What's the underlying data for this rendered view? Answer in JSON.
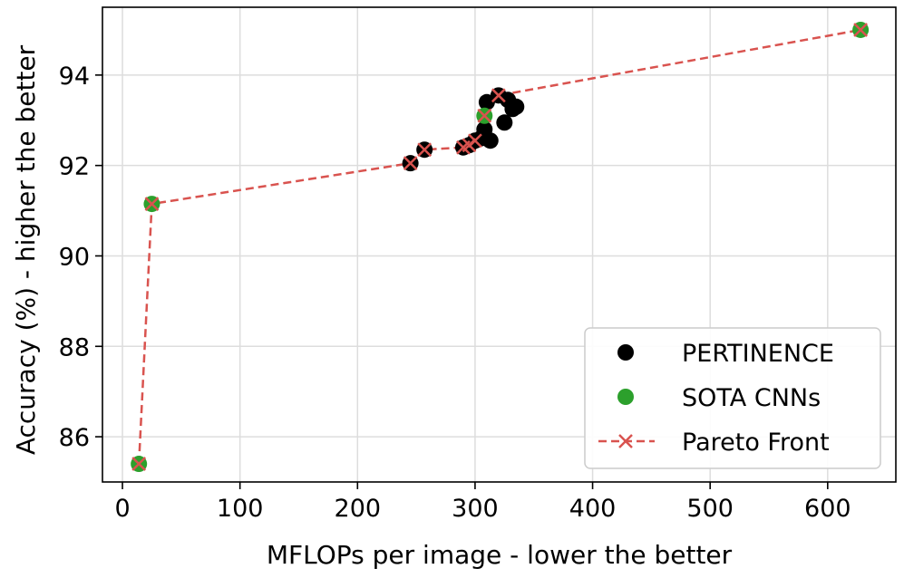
{
  "chart_data": {
    "type": "scatter",
    "xlabel": "MFLOPs per image - lower the better",
    "ylabel": "Accuracy (%) - higher the better",
    "xlim": [
      -17,
      658
    ],
    "ylim": [
      85.0,
      95.5
    ],
    "xticks": [
      0,
      100,
      200,
      300,
      400,
      500,
      600
    ],
    "yticks": [
      86,
      88,
      90,
      92,
      94
    ],
    "grid": true,
    "legend": {
      "placement": "lower-right"
    },
    "series": [
      {
        "name": "PERTINENCE",
        "kind": "scatter",
        "color": "#000000",
        "points": [
          [
            245,
            92.05
          ],
          [
            257,
            92.35
          ],
          [
            290,
            92.4
          ],
          [
            295,
            92.45
          ],
          [
            300,
            92.55
          ],
          [
            305,
            92.6
          ],
          [
            308,
            92.8
          ],
          [
            310,
            93.4
          ],
          [
            313,
            92.55
          ],
          [
            320,
            93.55
          ],
          [
            325,
            92.95
          ],
          [
            328,
            93.45
          ],
          [
            332,
            93.25
          ],
          [
            335,
            93.3
          ]
        ]
      },
      {
        "name": "SOTA CNNs",
        "kind": "scatter",
        "color": "#2ca02c",
        "points": [
          [
            14,
            85.4
          ],
          [
            25,
            91.15
          ],
          [
            308,
            93.1
          ],
          [
            628,
            95.0
          ]
        ]
      },
      {
        "name": "Pareto Front",
        "kind": "line",
        "color": "#d9534f",
        "points": [
          [
            14,
            85.4
          ],
          [
            25,
            91.15
          ],
          [
            245,
            92.05
          ],
          [
            257,
            92.35
          ],
          [
            290,
            92.4
          ],
          [
            295,
            92.45
          ],
          [
            300,
            92.55
          ],
          [
            308,
            93.1
          ],
          [
            320,
            93.55
          ],
          [
            628,
            95.0
          ]
        ]
      }
    ]
  }
}
